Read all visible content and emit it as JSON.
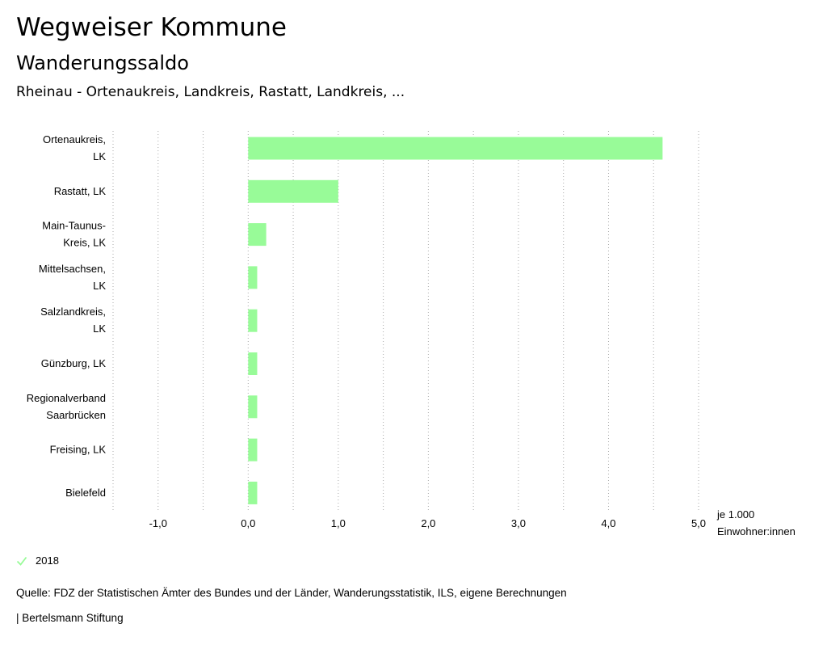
{
  "header": {
    "title": "Wegweiser Kommune",
    "subtitle": "Wanderungssaldo",
    "region": "Rheinau - Ortenaukreis, Landkreis, Rastatt, Landkreis, ..."
  },
  "chart_data": {
    "type": "bar",
    "orientation": "horizontal",
    "categories": [
      [
        "Ortenaukreis,",
        "LK"
      ],
      [
        "Rastatt, LK"
      ],
      [
        "Main-Taunus-",
        "Kreis, LK"
      ],
      [
        "Mittelsachsen,",
        "LK"
      ],
      [
        "Salzlandkreis,",
        "LK"
      ],
      [
        "Günzburg, LK"
      ],
      [
        "Regionalverband",
        "Saarbrücken"
      ],
      [
        "Freising, LK"
      ],
      [
        "Bielefeld"
      ]
    ],
    "series": [
      {
        "name": "2018",
        "values": [
          4.6,
          1.0,
          0.2,
          0.1,
          0.1,
          0.1,
          0.1,
          0.1,
          0.1
        ]
      }
    ],
    "xlim": [
      -1.5,
      5.0
    ],
    "xticks": [
      -1.0,
      0.0,
      1.0,
      2.0,
      3.0,
      4.0,
      5.0
    ],
    "xtick_labels": [
      "-1,0",
      "0,0",
      "1,0",
      "2,0",
      "3,0",
      "4,0",
      "5,0"
    ],
    "grid_values": [
      -1.5,
      -1.0,
      -0.5,
      0.0,
      0.5,
      1.0,
      1.5,
      2.0,
      2.5,
      3.0,
      3.5,
      4.0,
      4.5,
      5.0
    ],
    "unit_label": [
      "je 1.000",
      "Einwohner:innen"
    ],
    "grid": true,
    "legend_position": "bottom-left"
  },
  "legend": {
    "label": "2018"
  },
  "colors": {
    "bar": "#98fb98",
    "grid": "#aaaaaa",
    "legend_check": "#98fb98"
  },
  "footer": {
    "source": "Quelle: FDZ der Statistischen Ämter des Bundes und der Länder, Wanderungsstatistik, ILS, eigene Berechnungen",
    "publisher": "| Bertelsmann Stiftung"
  }
}
